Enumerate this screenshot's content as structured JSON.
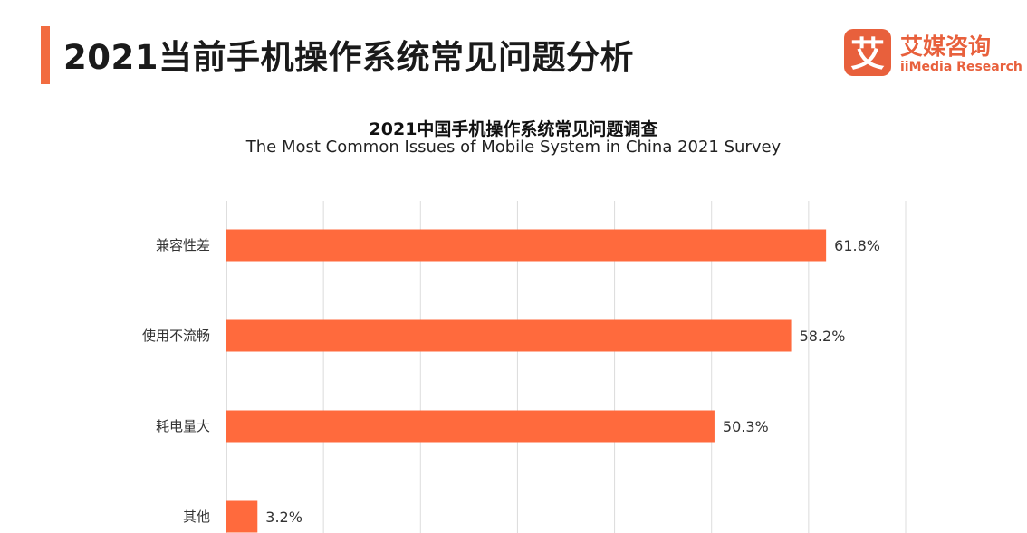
{
  "header": {
    "title": "2021当前手机操作系统常见问题分析",
    "accent_color": "#f26c40"
  },
  "logo": {
    "mark_char": "艾",
    "name_cn": "艾媒咨询",
    "name_en": "iiMedia Research",
    "color": "#e8603c"
  },
  "chart_data": {
    "type": "bar",
    "orientation": "horizontal",
    "title": "2021中国手机操作系统常见问题调查",
    "subtitle": "The Most Common Issues of Mobile System in China 2021 Survey",
    "categories": [
      "兼容性差",
      "使用不流畅",
      "耗电量大",
      "其他"
    ],
    "values": [
      61.8,
      58.2,
      50.3,
      3.2
    ],
    "labels": [
      "61.8%",
      "58.2%",
      "50.3%",
      "3.2%"
    ],
    "unit": "%",
    "xlim": [
      0,
      70
    ],
    "grid": true,
    "legend": "none",
    "bar_color": "#ff6a3d"
  }
}
